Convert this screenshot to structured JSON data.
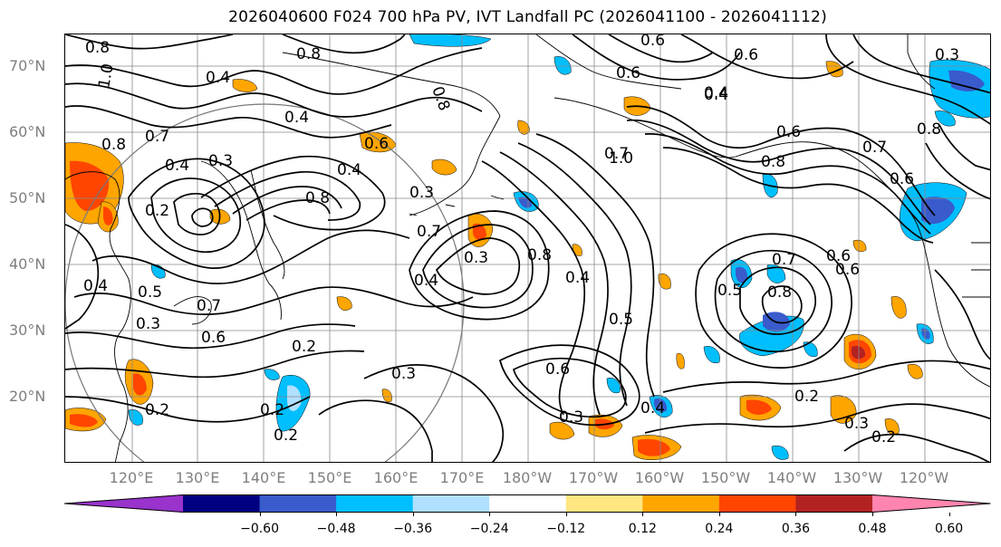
{
  "title": "2026040600 F024 700 hPa PV, IVT Landfall PC (2026041100 - 2026041112)",
  "lat_labels": [
    "70°N",
    "60°N",
    "50°N",
    "40°N",
    "30°N",
    "20°N"
  ],
  "lon_labels": [
    "120°E",
    "130°E",
    "140°E",
    "150°E",
    "160°E",
    "170°E",
    "180°W",
    "170°W",
    "160°W",
    "150°W",
    "140°W",
    "130°W",
    "120°W"
  ],
  "colorbar": {
    "colors": [
      "#9933cc",
      "#000080",
      "#3a5bcc",
      "#00bfff",
      "#b0e0ff",
      "#ffffff",
      "#ffe680",
      "#ffa500",
      "#ff4500",
      "#b22222",
      "#ff85b0"
    ],
    "tick_labels": [
      "−0.60",
      "−0.48",
      "−0.36",
      "−0.24",
      "−0.12",
      "0.12",
      "0.24",
      "0.36",
      "0.48",
      "0.60"
    ]
  },
  "contour_labels": [
    "0.8",
    "0.8",
    "1.0",
    "0.4",
    "0.6",
    "0.6",
    "0.8",
    "0.8",
    "0.3",
    "0.6",
    "0.4",
    "0.7",
    "0.4",
    "0.6",
    "0.4",
    "0.3",
    "0.4",
    "0.2",
    "0.3",
    "0.8",
    "0.4",
    "0.7",
    "0.3",
    "0.8",
    "0.7",
    "1.0",
    "0.4",
    "0.8",
    "0.6",
    "0.4",
    "0.5",
    "0.7",
    "0.5",
    "0.7",
    "0.8",
    "0.6",
    "0.8",
    "0.5",
    "0.4",
    "0.3",
    "0.6",
    "0.2",
    "0.3",
    "0.2",
    "0.6",
    "0.2",
    "0.2",
    "0.3",
    "0.4",
    "0.2",
    "0.3",
    "0.2",
    "0.6",
    "0.7",
    "0.6"
  ]
}
